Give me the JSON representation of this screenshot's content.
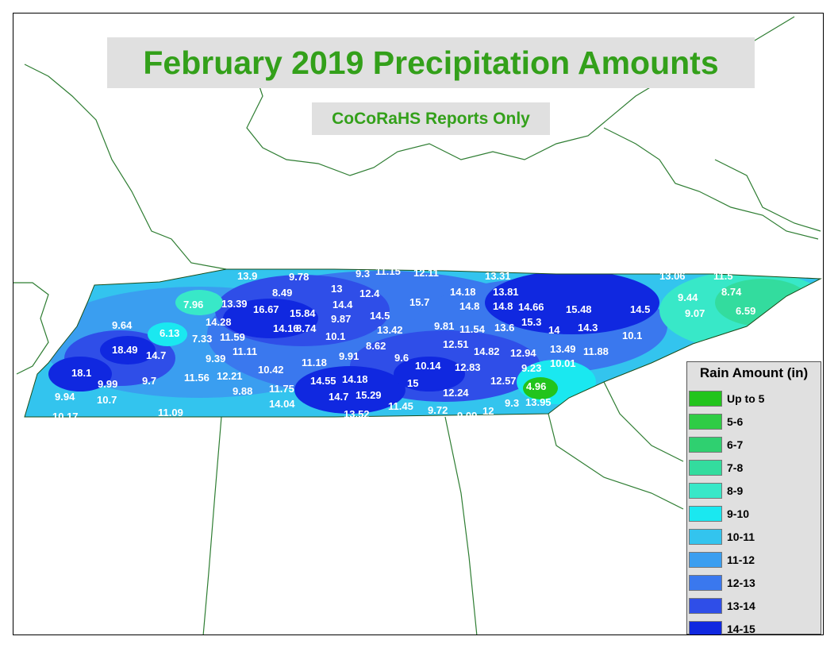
{
  "title": "February 2019 Precipitation Amounts",
  "subtitle": "CoCoRaHS Reports Only",
  "legend": {
    "title": "Rain Amount (in)",
    "items": [
      {
        "label": "Up to 5",
        "color": "#22c41c"
      },
      {
        "label": "5-6",
        "color": "#2fcc45"
      },
      {
        "label": "6-7",
        "color": "#2fd070"
      },
      {
        "label": "7-8",
        "color": "#33dc9e"
      },
      {
        "label": "8-9",
        "color": "#38e8c8"
      },
      {
        "label": "9-10",
        "color": "#1ae8f0"
      },
      {
        "label": "10-11",
        "color": "#33c4ee"
      },
      {
        "label": "11-12",
        "color": "#3a9ef0"
      },
      {
        "label": "12-13",
        "color": "#3a78ee"
      },
      {
        "label": "13-14",
        "color": "#2f4ee8"
      },
      {
        "label": "14-15",
        "color": "#1028e0"
      }
    ]
  },
  "values": [
    "13.9",
    "9.78",
    "9.3",
    "11.15",
    "12.11",
    "13.31",
    "13.06",
    "11.5",
    "8.49",
    "13",
    "12.4",
    "14.18",
    "13.81",
    "9.44",
    "8.74",
    "7.96",
    "13.39",
    "16.67",
    "15.84",
    "14.4",
    "15.7",
    "14.8",
    "14.8",
    "14.66",
    "15.48",
    "14.5",
    "9.07",
    "6.59",
    "9.64",
    "14.28",
    "14.16",
    "8.74",
    "9.87",
    "14.5",
    "13.42",
    "9.81",
    "11.54",
    "13.6",
    "15.3",
    "14",
    "14.3",
    "6.13",
    "7.33",
    "11.59",
    "10.1",
    "8.62",
    "12.51",
    "14.82",
    "12.94",
    "13.49",
    "11.88",
    "10.1",
    "18.49",
    "14.7",
    "9.39",
    "11.11",
    "11.18",
    "9.91",
    "9.6",
    "10.14",
    "12.83",
    "9.23",
    "10.01",
    "18.1",
    "9.7",
    "11.56",
    "12.21",
    "10.42",
    "14.55",
    "14.18",
    "15",
    "12.57",
    "4.96",
    "9.99",
    "9.88",
    "11.75",
    "14.7",
    "15.29",
    "12.24",
    "9.94",
    "10.7",
    "14.04",
    "11.45",
    "9.72",
    "9.3",
    "13.95",
    "10.17",
    "11.09",
    "13.52",
    "9.09",
    "12"
  ]
}
